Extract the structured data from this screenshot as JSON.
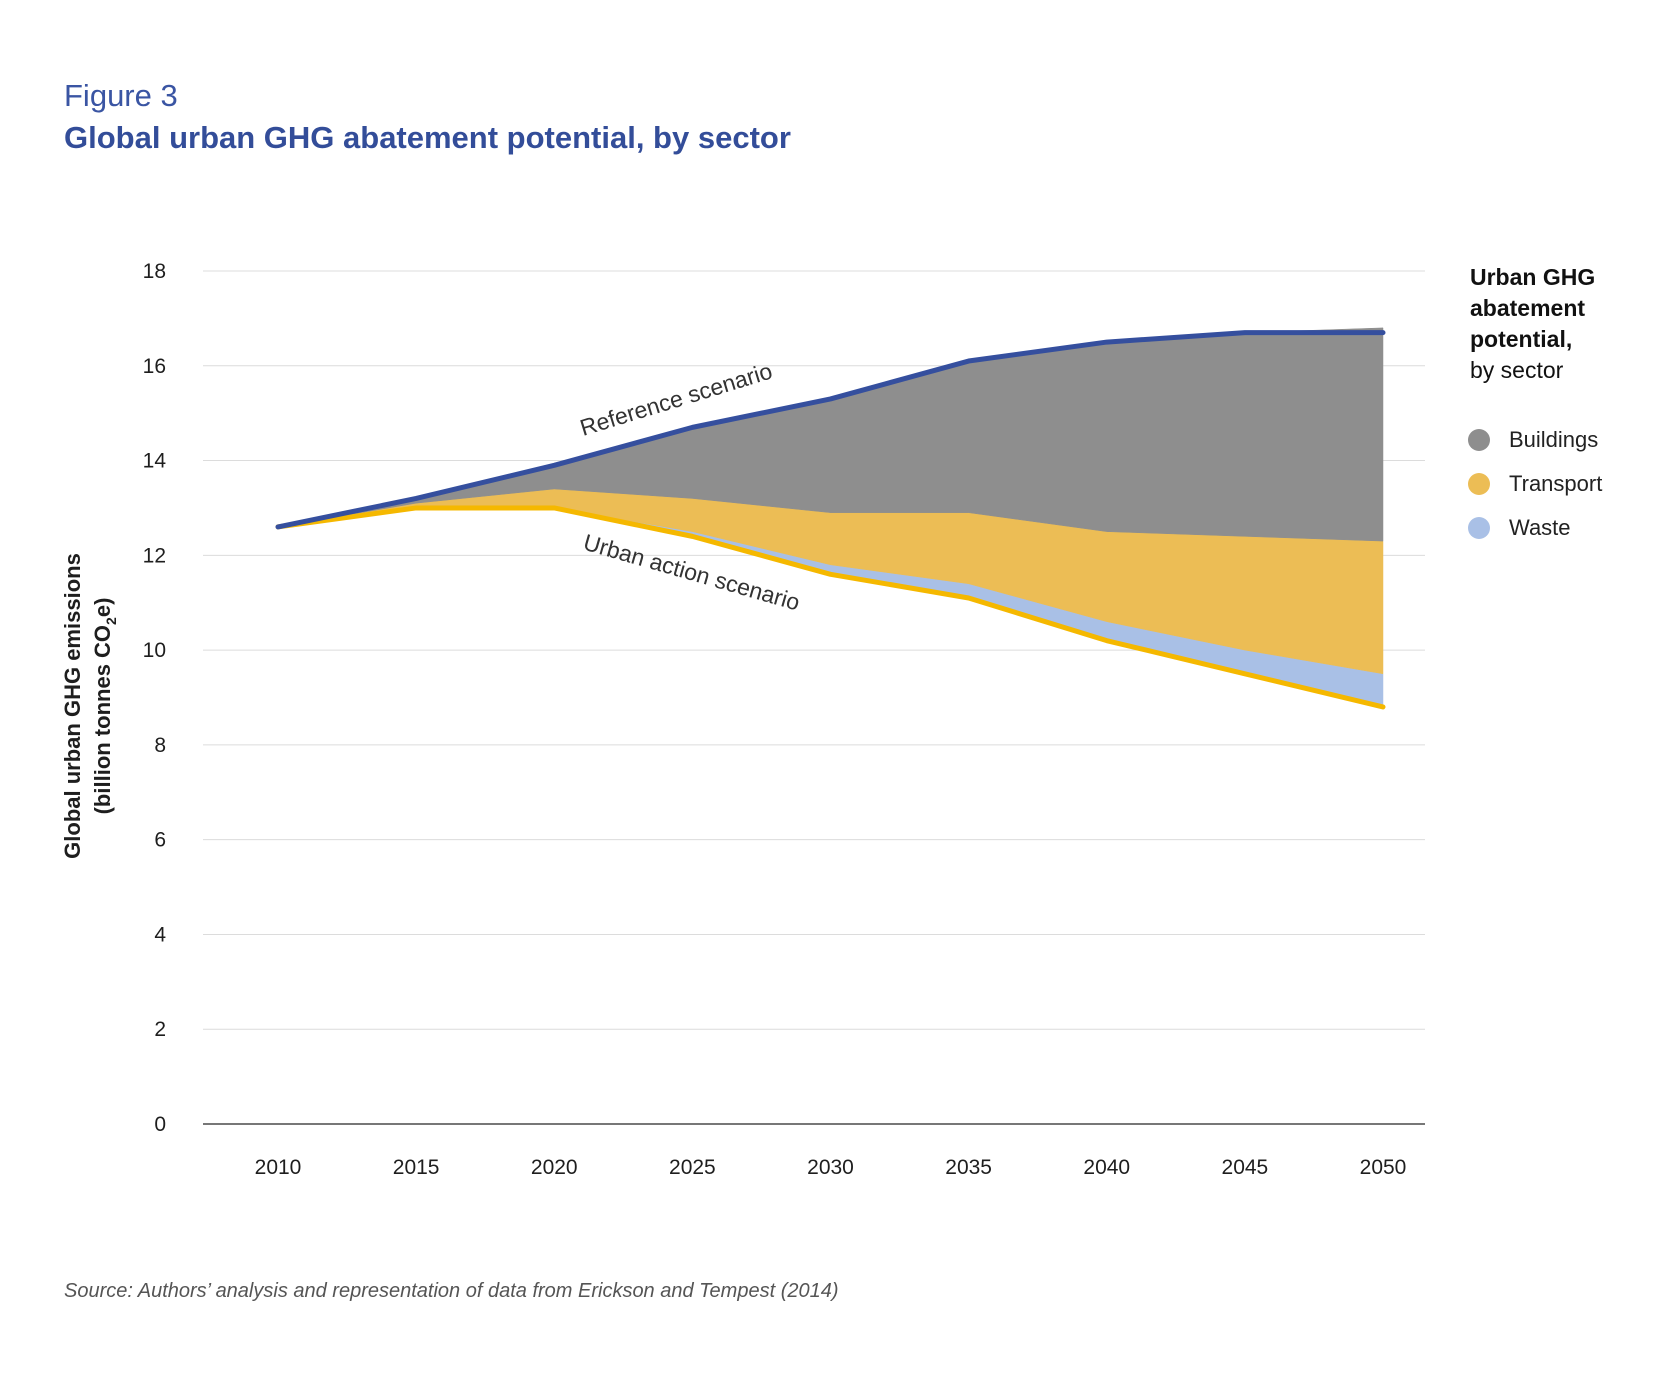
{
  "figure": {
    "label": "Figure 3",
    "title": "Global urban GHG abatement potential, by sector"
  },
  "legend": {
    "title_bold_1": "Urban GHG",
    "title_bold_2": "abatement",
    "title_bold_3": "potential,",
    "title_regular": "by sector",
    "items": [
      {
        "label": "Buildings",
        "color": "#8e8e8e"
      },
      {
        "label": "Transport",
        "color": "#ecbd55"
      },
      {
        "label": "Waste",
        "color": "#a9c0e6"
      }
    ]
  },
  "source": "Source: Authors’ analysis and representation of data from Erickson and Tempest (2014)",
  "chart_data": {
    "type": "area",
    "x": [
      2010,
      2015,
      2020,
      2025,
      2030,
      2035,
      2040,
      2045,
      2050
    ],
    "ylabel_line1": "Global urban GHG emissions",
    "ylabel_line2_prefix": "(billion tonnes CO",
    "ylabel_subscript": "2",
    "ylabel_line2_suffix": "e)",
    "ylim": [
      0,
      18
    ],
    "yticks": [
      0,
      2,
      4,
      6,
      8,
      10,
      12,
      14,
      16,
      18
    ],
    "grid": true,
    "legend_position": "right",
    "reference_scenario": {
      "label": "Reference scenario",
      "color": "#354f9e",
      "values": [
        12.6,
        13.2,
        13.9,
        14.7,
        15.3,
        16.1,
        16.5,
        16.7,
        16.7
      ]
    },
    "urban_action_scenario": {
      "label": "Urban action scenario",
      "color": "#f5b800",
      "values": [
        12.6,
        13.0,
        13.0,
        12.4,
        11.6,
        11.1,
        10.2,
        9.5,
        8.8
      ]
    },
    "series": [
      {
        "name": "Waste",
        "color": "#a9c0e6",
        "values": [
          0.0,
          0.0,
          0.0,
          0.1,
          0.2,
          0.3,
          0.4,
          0.5,
          0.7
        ]
      },
      {
        "name": "Transport",
        "color": "#ecbd55",
        "values": [
          0.0,
          0.1,
          0.4,
          0.7,
          1.1,
          1.5,
          1.9,
          2.4,
          2.8
        ]
      },
      {
        "name": "Buildings",
        "color": "#8e8e8e",
        "values": [
          0.0,
          0.1,
          0.5,
          1.5,
          2.4,
          3.2,
          4.0,
          4.3,
          4.5
        ]
      }
    ]
  }
}
